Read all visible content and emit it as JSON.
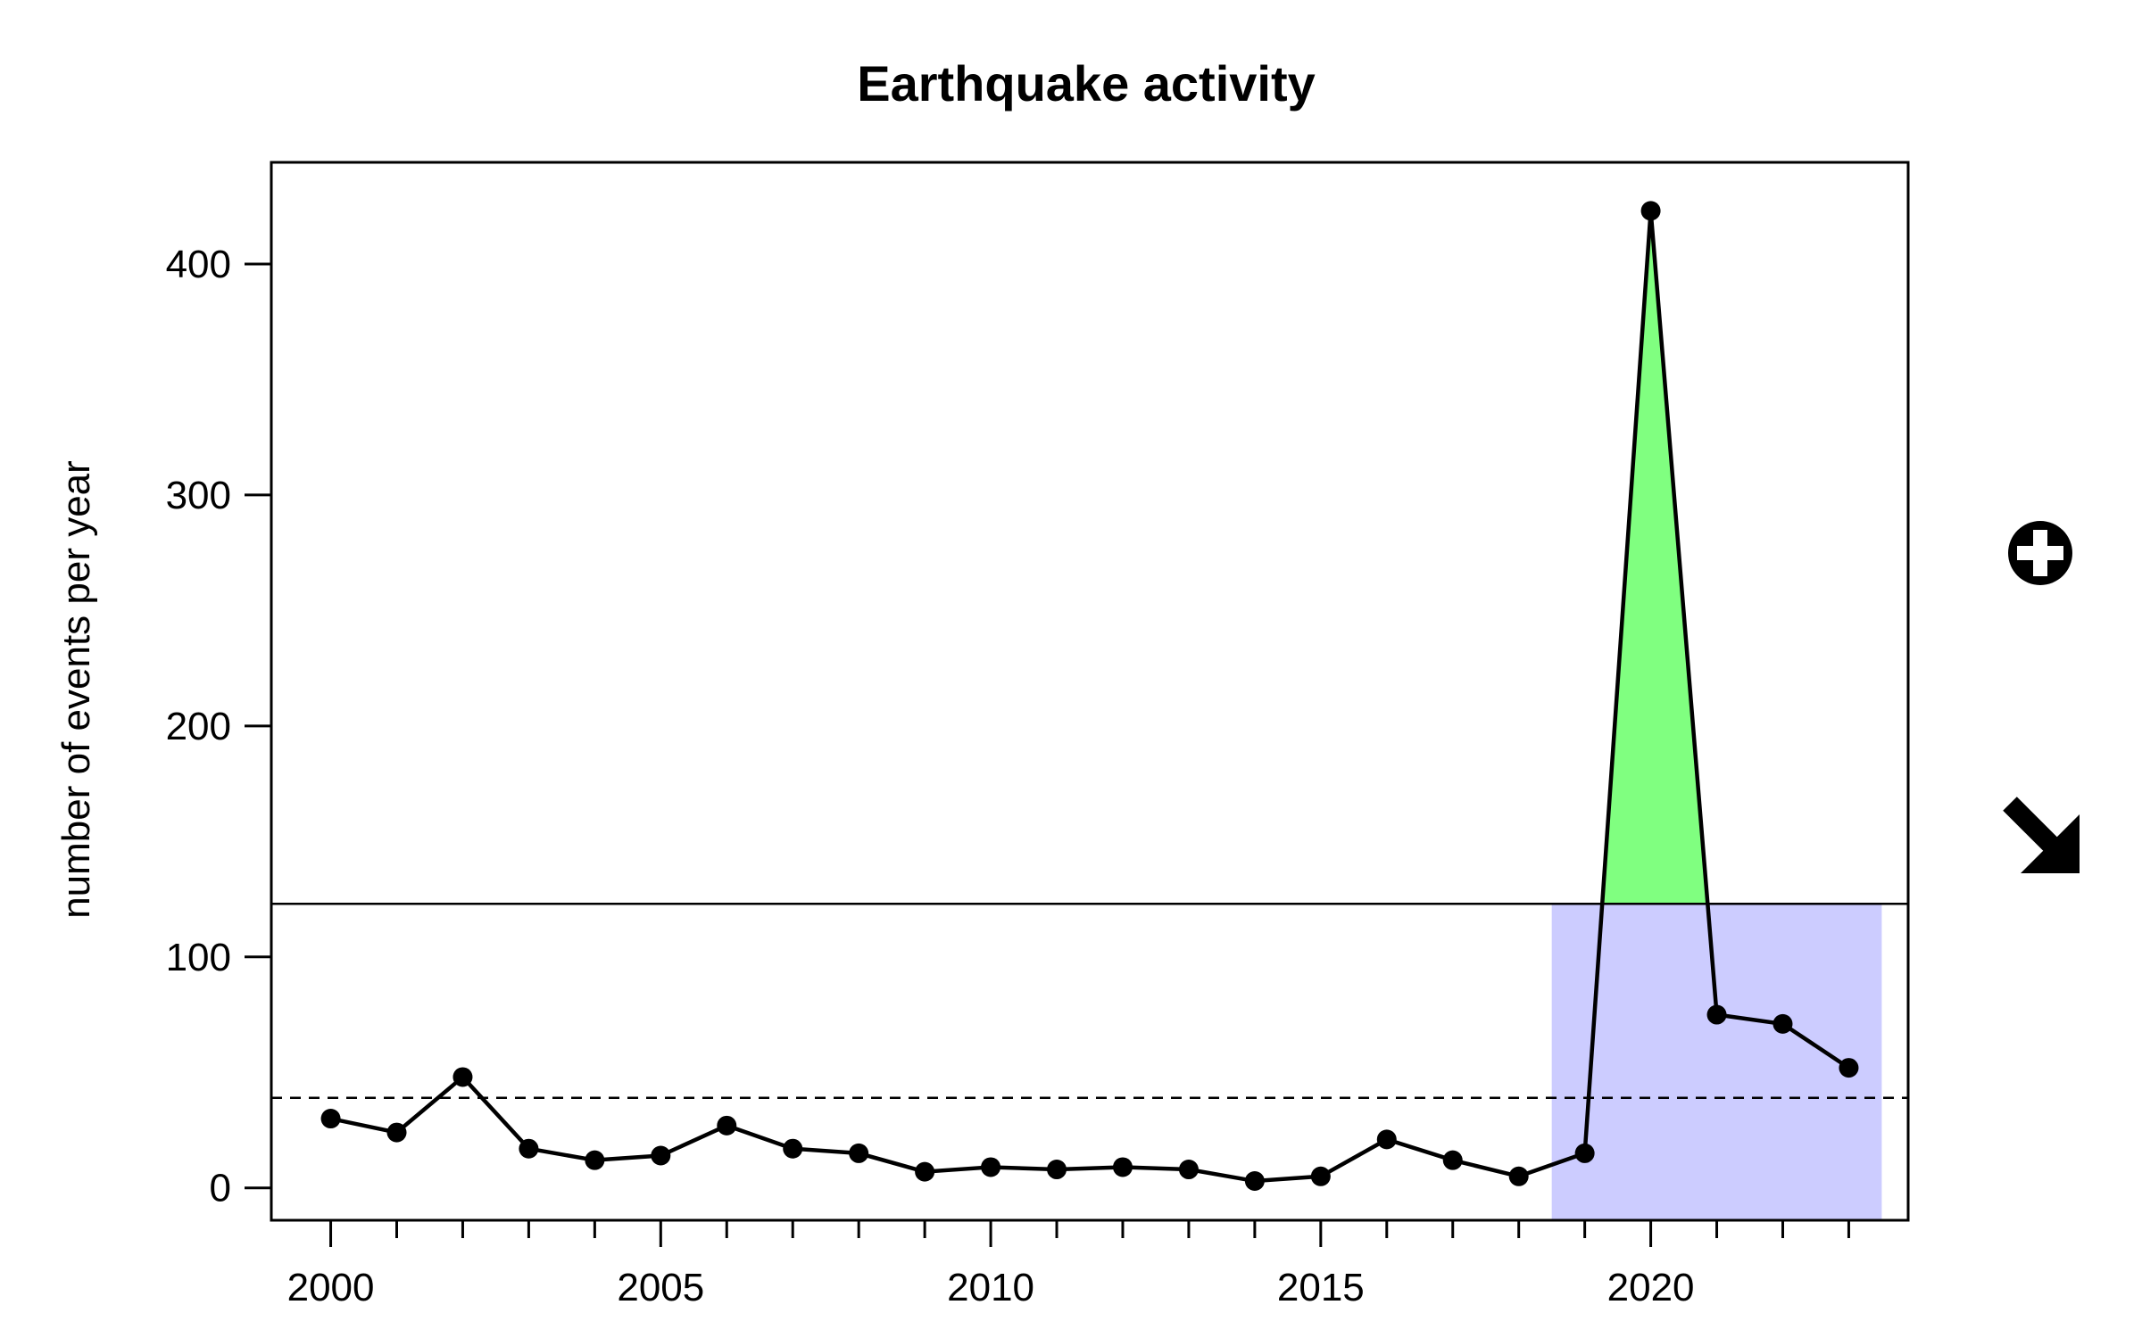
{
  "chart_data": {
    "type": "line",
    "title": "Earthquake activity",
    "xlabel": "",
    "ylabel": "number of events per year",
    "xlim": [
      1999.1,
      2023.9
    ],
    "ylim": [
      -14,
      444
    ],
    "x_major_ticks": [
      2000,
      2005,
      2010,
      2015,
      2020
    ],
    "x_minor_ticks": [
      2000,
      2001,
      2002,
      2003,
      2004,
      2005,
      2006,
      2007,
      2008,
      2009,
      2010,
      2011,
      2012,
      2013,
      2014,
      2015,
      2016,
      2017,
      2018,
      2019,
      2020,
      2021,
      2022,
      2023
    ],
    "y_ticks": [
      0,
      100,
      200,
      300,
      400
    ],
    "x": [
      2000,
      2001,
      2002,
      2003,
      2004,
      2005,
      2006,
      2007,
      2008,
      2009,
      2010,
      2011,
      2012,
      2013,
      2014,
      2015,
      2016,
      2017,
      2018,
      2019,
      2020,
      2021,
      2022,
      2023
    ],
    "series": [
      {
        "values": [
          30,
          24,
          48,
          17,
          12,
          14,
          27,
          17,
          15,
          7,
          9,
          8,
          9,
          8,
          3,
          5,
          21,
          12,
          5,
          15,
          423,
          75,
          71,
          52
        ]
      }
    ],
    "reference_lines": {
      "mean_dashed": 39,
      "threshold_solid": 123
    },
    "highlight_region": {
      "x_start": 2018.5,
      "x_end": 2023.5,
      "y_max": 123,
      "color": "#ccccff"
    },
    "exceedance_fill_color": "#80ff80",
    "line_color": "#000000",
    "grid": false,
    "side_symbols": [
      "circled-plus-icon",
      "arrow-down-right-icon"
    ]
  }
}
